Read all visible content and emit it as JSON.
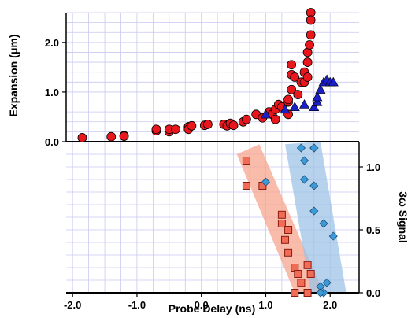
{
  "chart_data": {
    "type": "scatter",
    "xlabel": "Probe Delay (ns)",
    "ylabel_top": "Expansion (μm)",
    "ylabel_bottom": "3ω Signal",
    "x_ticks": [
      "-2.0",
      "-1.0",
      "0.0",
      "1.0",
      "2.0"
    ],
    "y_top_ticks": [
      "0.0",
      "1.0",
      "2.0"
    ],
    "y_bottom_ticks": [
      "0.0",
      "0.5",
      "1.0"
    ],
    "xlim": [
      -2.1,
      2.45
    ],
    "ylim_top": [
      0,
      2.6
    ],
    "ylim_bottom": [
      0,
      1.2
    ],
    "grid": true,
    "colors": {
      "red_circle": "#e8171e",
      "blue_triangle": "#1a1fc6",
      "salmon_square": "#f26b57",
      "lightblue_diamond": "#3c9ad8",
      "salmon_band": "#f7a58f",
      "blue_band": "#9dc3e6",
      "grid": "#c8c8f0"
    },
    "series": [
      {
        "marker": "circle",
        "panel": "top",
        "points": [
          [
            -1.85,
            0.08
          ],
          [
            -1.4,
            0.1
          ],
          [
            -1.2,
            0.12
          ],
          [
            -1.2,
            0.11
          ],
          [
            -0.7,
            0.22
          ],
          [
            -0.7,
            0.25
          ],
          [
            -0.5,
            0.2
          ],
          [
            -0.5,
            0.25
          ],
          [
            -0.4,
            0.25
          ],
          [
            -0.2,
            0.3
          ],
          [
            -0.2,
            0.25
          ],
          [
            -0.15,
            0.32
          ],
          [
            0.05,
            0.33
          ],
          [
            0.1,
            0.35
          ],
          [
            0.35,
            0.35
          ],
          [
            0.4,
            0.32
          ],
          [
            0.45,
            0.37
          ],
          [
            0.5,
            0.33
          ],
          [
            0.65,
            0.4
          ],
          [
            0.7,
            0.45
          ],
          [
            0.85,
            0.55
          ],
          [
            0.95,
            0.48
          ],
          [
            1.05,
            0.6
          ],
          [
            1.1,
            0.55
          ],
          [
            1.15,
            0.45
          ],
          [
            1.15,
            0.65
          ],
          [
            1.2,
            0.75
          ],
          [
            1.25,
            0.7
          ],
          [
            1.35,
            0.55
          ],
          [
            1.35,
            0.8
          ],
          [
            1.35,
            0.85
          ],
          [
            1.4,
            1.05
          ],
          [
            1.4,
            1.35
          ],
          [
            1.4,
            1.55
          ],
          [
            1.45,
            1.3
          ],
          [
            1.5,
            0.95
          ],
          [
            1.55,
            1.2
          ],
          [
            1.6,
            1.2
          ],
          [
            1.6,
            1.4
          ],
          [
            1.65,
            1.6
          ],
          [
            1.65,
            1.8
          ],
          [
            1.68,
            1.95
          ],
          [
            1.7,
            2.6
          ],
          [
            1.7,
            2.45
          ],
          [
            1.7,
            2.15
          ],
          [
            1.65,
            1.3
          ]
        ]
      },
      {
        "marker": "triangle",
        "panel": "top",
        "points": [
          [
            1.0,
            0.55
          ],
          [
            1.3,
            0.65
          ],
          [
            1.45,
            0.7
          ],
          [
            1.6,
            0.75
          ],
          [
            1.75,
            0.7
          ],
          [
            1.8,
            0.8
          ],
          [
            1.8,
            0.9
          ],
          [
            1.85,
            1.05
          ],
          [
            1.9,
            1.2
          ],
          [
            1.95,
            1.25
          ],
          [
            2.0,
            1.2
          ],
          [
            2.05,
            1.2
          ]
        ]
      },
      {
        "marker": "square",
        "panel": "bottom",
        "points": [
          [
            0.7,
            1.05
          ],
          [
            0.7,
            0.85
          ],
          [
            0.95,
            0.85
          ],
          [
            1.25,
            0.62
          ],
          [
            1.25,
            0.55
          ],
          [
            1.3,
            0.42
          ],
          [
            1.35,
            0.5
          ],
          [
            1.35,
            0.32
          ],
          [
            1.45,
            0.2
          ],
          [
            1.5,
            0.15
          ],
          [
            1.55,
            0.08
          ],
          [
            1.45,
            0.0
          ],
          [
            1.65,
            0.22
          ],
          [
            1.7,
            0.15
          ],
          [
            1.65,
            0.0
          ]
        ]
      },
      {
        "marker": "diamond",
        "panel": "bottom",
        "points": [
          [
            1.0,
            0.88
          ],
          [
            1.55,
            1.15
          ],
          [
            1.6,
            1.05
          ],
          [
            1.75,
            1.15
          ],
          [
            1.75,
            1.15
          ],
          [
            1.6,
            0.9
          ],
          [
            1.75,
            0.85
          ],
          [
            1.75,
            0.65
          ],
          [
            1.9,
            0.55
          ],
          [
            2.05,
            0.45
          ],
          [
            1.85,
            0.05
          ],
          [
            1.9,
            0.0
          ],
          [
            1.95,
            0.08
          ],
          [
            1.85,
            0.0
          ]
        ]
      }
    ],
    "bands": [
      {
        "color": "salmon_band",
        "polygon": [
          [
            0.55,
            1.1
          ],
          [
            0.9,
            1.18
          ],
          [
            1.9,
            0.0
          ],
          [
            1.45,
            0.0
          ]
        ]
      },
      {
        "color": "blue_band",
        "polygon": [
          [
            1.3,
            1.18
          ],
          [
            1.85,
            1.2
          ],
          [
            2.25,
            0.0
          ],
          [
            1.7,
            0.0
          ]
        ]
      }
    ]
  }
}
